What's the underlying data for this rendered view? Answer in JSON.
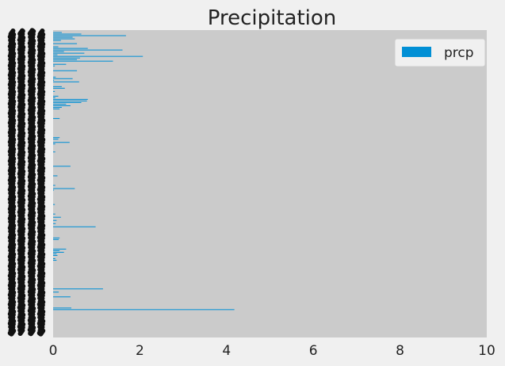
{
  "chart_data": {
    "type": "bar",
    "orientation": "horizontal",
    "title": "Precipitation",
    "xlabel": "",
    "ylabel": "",
    "xlim": [
      0,
      10
    ],
    "x_ticks": [
      "0",
      "2",
      "4",
      "6",
      "8",
      "10"
    ],
    "legend": {
      "placement": "top-right",
      "entries": [
        "prcp"
      ]
    },
    "grid": false,
    "colors": {
      "bar": "#008fd5",
      "plot_bg": "#cbcbcb",
      "figure_bg": "#f0f0f0"
    },
    "series": [
      {
        "name": "prcp",
        "values": [
          0.2,
          0.65,
          1.68,
          0.45,
          0.5,
          0.18,
          0.0,
          0.55,
          0.0,
          0.12,
          0.8,
          1.6,
          0.25,
          0.72,
          0.1,
          2.07,
          0.62,
          0.55,
          1.38,
          0.0,
          0.3,
          0.04,
          0.0,
          0.0,
          0.55,
          0.0,
          0.0,
          0.0,
          0.06,
          0.45,
          0.02,
          0.6,
          0.0,
          0.0,
          0.2,
          0.27,
          0.0,
          0.04,
          0.0,
          0.0,
          0.12,
          0.05,
          0.8,
          0.78,
          0.65,
          0.3,
          0.4,
          0.2,
          0.15,
          0.0,
          0.0,
          0.0,
          0.0,
          0.0,
          0.15,
          0.0,
          0.0,
          0.0,
          0.0,
          0.0,
          0.0,
          0.0,
          0.0,
          0.0,
          0.0,
          0.0,
          0.15,
          0.12,
          0.0,
          0.38,
          0.05,
          0.0,
          0.0,
          0.0,
          0.0,
          0.05,
          0.0,
          0.0,
          0.0,
          0.0,
          0.0,
          0.0,
          0.0,
          0.0,
          0.4,
          0.0,
          0.0,
          0.0,
          0.0,
          0.0,
          0.1,
          0.0,
          0.0,
          0.0,
          0.0,
          0.0,
          0.05,
          0.0,
          0.5,
          0.02,
          0.0,
          0.0,
          0.0,
          0.0,
          0.0,
          0.0,
          0.0,
          0.0,
          0.04,
          0.0,
          0.0,
          0.0,
          0.0,
          0.0,
          0.05,
          0.0,
          0.18,
          0.0,
          0.08,
          0.0,
          0.06,
          0.0,
          0.98,
          0.0,
          0.0,
          0.0,
          0.0,
          0.0,
          0.0,
          0.15,
          0.13,
          0.0,
          0.0,
          0.0,
          0.0,
          0.0,
          0.3,
          0.15,
          0.25,
          0.08,
          0.1,
          0.0,
          0.05,
          0.08,
          0.0,
          0.0,
          0.0,
          0.0,
          0.0,
          0.0,
          0.0,
          0.0,
          0.0,
          0.0,
          0.0,
          0.0,
          0.0,
          0.0,
          0.0,
          0.0,
          0.0,
          1.15,
          0.0,
          0.13,
          0.0,
          0.0,
          0.4,
          0.0,
          0.0,
          0.0,
          0.0,
          0.0,
          0.0,
          0.42,
          4.18,
          0.0,
          0.0,
          0.0,
          0.0,
          0.0,
          0.0,
          0.0,
          0.0,
          0.0,
          0.0,
          0.0,
          0.0,
          0.0,
          0.0,
          0.0
        ]
      }
    ]
  }
}
